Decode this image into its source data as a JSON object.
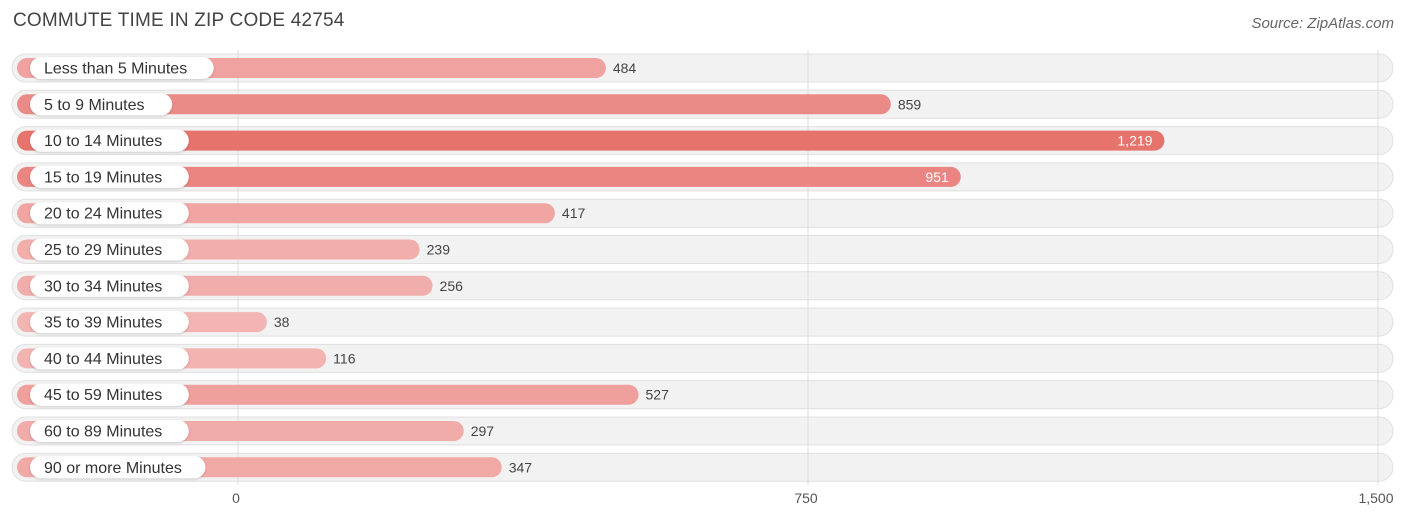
{
  "header": {
    "title": "COMMUTE TIME IN ZIP CODE 42754",
    "source": "Source: ZipAtlas.com"
  },
  "chart_data": {
    "type": "bar",
    "orientation": "horizontal",
    "title": "COMMUTE TIME IN ZIP CODE 42754",
    "xlabel": "",
    "ylabel": "",
    "xlim": [
      0,
      1500
    ],
    "ticks": [
      0,
      750,
      1500
    ],
    "tick_labels": [
      "0",
      "750",
      "1,500"
    ],
    "categories": [
      "Less than 5 Minutes",
      "5 to 9 Minutes",
      "10 to 14 Minutes",
      "15 to 19 Minutes",
      "20 to 24 Minutes",
      "25 to 29 Minutes",
      "30 to 34 Minutes",
      "35 to 39 Minutes",
      "40 to 44 Minutes",
      "45 to 59 Minutes",
      "60 to 89 Minutes",
      "90 or more Minutes"
    ],
    "values": [
      484,
      859,
      1219,
      951,
      417,
      239,
      256,
      38,
      116,
      527,
      297,
      347
    ],
    "value_labels": [
      "484",
      "859",
      "1,219",
      "951",
      "417",
      "239",
      "256",
      "38",
      "116",
      "527",
      "297",
      "347"
    ],
    "grid": true
  },
  "colors": {
    "bar_light": "#f2b1b0",
    "bar_dark": "#e7736d",
    "track": "#f2f2f2",
    "track_border": "#e0e0e0",
    "grid": "#dddddd"
  }
}
